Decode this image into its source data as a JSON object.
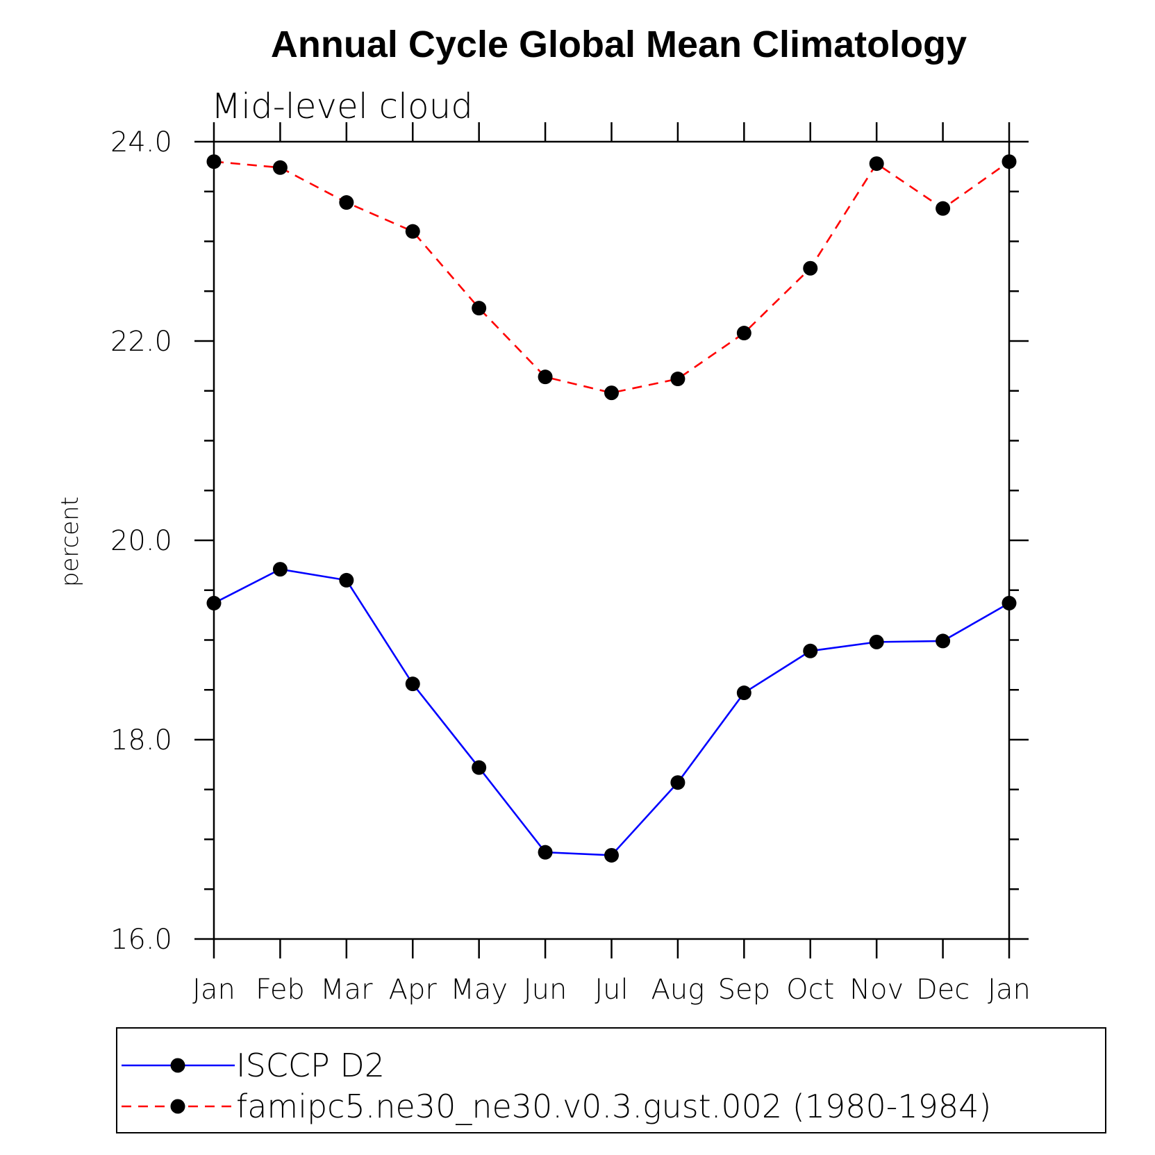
{
  "chart_data": {
    "type": "line",
    "title": "Annual Cycle Global Mean Climatology",
    "subtitle": "Mid-level cloud",
    "xlabel": "",
    "ylabel": "percent",
    "categories": [
      "Jan",
      "Feb",
      "Mar",
      "Apr",
      "May",
      "Jun",
      "Jul",
      "Aug",
      "Sep",
      "Oct",
      "Nov",
      "Dec",
      "Jan"
    ],
    "ylim": [
      16.0,
      24.0
    ],
    "yticks": [
      "16.0",
      "18.0",
      "20.0",
      "22.0",
      "24.0"
    ],
    "grid": false,
    "legend_position": "bottom",
    "series": [
      {
        "name": "ISCCP D2",
        "color": "#0000ff",
        "line_style": "solid",
        "marker": "filled-circle",
        "values": [
          19.37,
          19.71,
          19.6,
          18.56,
          17.72,
          16.87,
          16.84,
          17.57,
          18.47,
          18.89,
          18.98,
          18.99,
          19.37
        ]
      },
      {
        "name": "famipc5.ne30_ne30.v0.3.gust.002 (1980-1984)",
        "color": "#ff0000",
        "line_style": "dashed",
        "marker": "filled-circle",
        "values": [
          23.8,
          23.74,
          23.39,
          23.1,
          22.33,
          21.64,
          21.48,
          21.62,
          22.08,
          22.73,
          23.78,
          23.33,
          23.8
        ]
      }
    ]
  }
}
